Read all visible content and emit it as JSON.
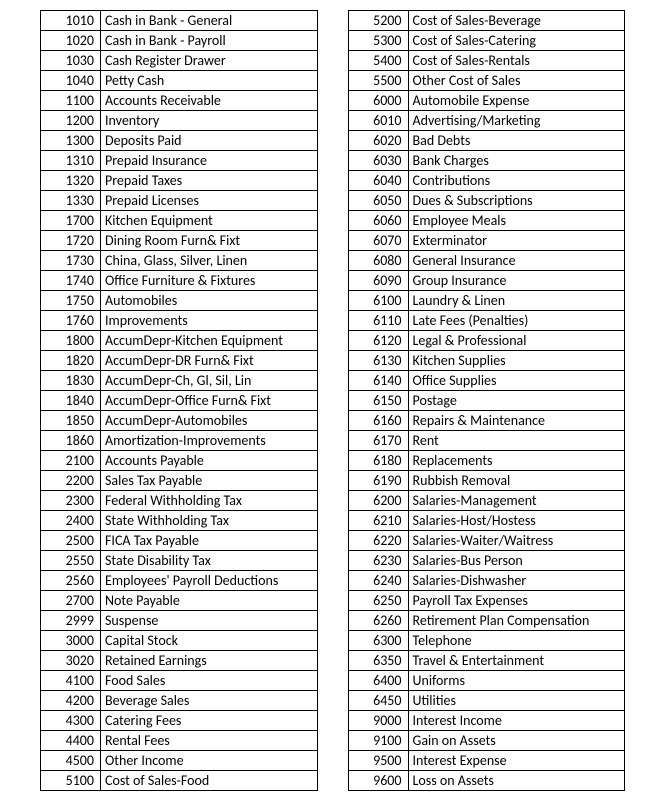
{
  "left_table": {
    "rows": [
      {
        "code": "1010",
        "name": "Cash in Bank - General"
      },
      {
        "code": "1020",
        "name": "Cash in Bank - Payroll"
      },
      {
        "code": "1030",
        "name": "Cash Register Drawer"
      },
      {
        "code": "1040",
        "name": "Petty Cash"
      },
      {
        "code": "1100",
        "name": "Accounts Receivable"
      },
      {
        "code": "1200",
        "name": "Inventory"
      },
      {
        "code": "1300",
        "name": "Deposits Paid"
      },
      {
        "code": "1310",
        "name": "Prepaid Insurance"
      },
      {
        "code": "1320",
        "name": "Prepaid Taxes"
      },
      {
        "code": "1330",
        "name": "Prepaid Licenses"
      },
      {
        "code": "1700",
        "name": "Kitchen Equipment"
      },
      {
        "code": "1720",
        "name": "Dining Room Furn& Fixt"
      },
      {
        "code": "1730",
        "name": "China, Glass, Silver, Linen"
      },
      {
        "code": "1740",
        "name": "Office Furniture & Fixtures"
      },
      {
        "code": "1750",
        "name": "Automobiles"
      },
      {
        "code": "1760",
        "name": "Improvements"
      },
      {
        "code": "1800",
        "name": "AccumDepr-Kitchen Equipment"
      },
      {
        "code": "1820",
        "name": "AccumDepr-DR Furn& Fixt"
      },
      {
        "code": "1830",
        "name": "AccumDepr-Ch, Gl, Sil, Lin"
      },
      {
        "code": "1840",
        "name": "AccumDepr-Office Furn& Fixt"
      },
      {
        "code": "1850",
        "name": "AccumDepr-Automobiles"
      },
      {
        "code": "1860",
        "name": "Amortization-Improvements"
      },
      {
        "code": "2100",
        "name": "Accounts Payable"
      },
      {
        "code": "2200",
        "name": "Sales Tax Payable"
      },
      {
        "code": "2300",
        "name": "Federal Withholding Tax"
      },
      {
        "code": "2400",
        "name": "State Withholding Tax"
      },
      {
        "code": "2500",
        "name": "FICA Tax Payable"
      },
      {
        "code": "2550",
        "name": "State Disability Tax"
      },
      {
        "code": "2560",
        "name": "Employees' Payroll Deductions"
      },
      {
        "code": "2700",
        "name": "Note Payable"
      },
      {
        "code": "2999",
        "name": "Suspense"
      },
      {
        "code": "3000",
        "name": "Capital Stock"
      },
      {
        "code": "3020",
        "name": "Retained Earnings"
      },
      {
        "code": "4100",
        "name": "Food Sales"
      },
      {
        "code": "4200",
        "name": "Beverage Sales"
      },
      {
        "code": "4300",
        "name": "Catering Fees"
      },
      {
        "code": "4400",
        "name": "Rental Fees"
      },
      {
        "code": "4500",
        "name": "Other Income"
      },
      {
        "code": "5100",
        "name": "Cost of Sales-Food"
      }
    ]
  },
  "right_table": {
    "rows": [
      {
        "code": "5200",
        "name": "Cost of Sales-Beverage"
      },
      {
        "code": "5300",
        "name": "Cost of Sales-Catering"
      },
      {
        "code": "5400",
        "name": "Cost of Sales-Rentals"
      },
      {
        "code": "5500",
        "name": "Other Cost of Sales"
      },
      {
        "code": "6000",
        "name": "Automobile Expense"
      },
      {
        "code": "6010",
        "name": "Advertising/Marketing"
      },
      {
        "code": "6020",
        "name": "Bad Debts"
      },
      {
        "code": "6030",
        "name": "Bank Charges"
      },
      {
        "code": "6040",
        "name": "Contributions"
      },
      {
        "code": "6050",
        "name": "Dues & Subscriptions"
      },
      {
        "code": "6060",
        "name": "Employee Meals"
      },
      {
        "code": "6070",
        "name": "Exterminator"
      },
      {
        "code": "6080",
        "name": "General Insurance"
      },
      {
        "code": "6090",
        "name": "Group Insurance"
      },
      {
        "code": "6100",
        "name": "Laundry & Linen"
      },
      {
        "code": "6110",
        "name": "Late Fees (Penalties)"
      },
      {
        "code": "6120",
        "name": "Legal & Professional"
      },
      {
        "code": "6130",
        "name": "Kitchen Supplies"
      },
      {
        "code": "6140",
        "name": "Office Supplies"
      },
      {
        "code": "6150",
        "name": "Postage"
      },
      {
        "code": "6160",
        "name": "Repairs & Maintenance"
      },
      {
        "code": "6170",
        "name": "Rent"
      },
      {
        "code": "6180",
        "name": "Replacements"
      },
      {
        "code": "6190",
        "name": "Rubbish Removal"
      },
      {
        "code": "6200",
        "name": "Salaries-Management"
      },
      {
        "code": "6210",
        "name": "Salaries-Host/Hostess"
      },
      {
        "code": "6220",
        "name": "Salaries-Waiter/Waitress"
      },
      {
        "code": "6230",
        "name": "Salaries-Bus Person"
      },
      {
        "code": "6240",
        "name": "Salaries-Dishwasher"
      },
      {
        "code": "6250",
        "name": "Payroll Tax Expenses"
      },
      {
        "code": "6260",
        "name": "Retirement Plan Compensation"
      },
      {
        "code": "6300",
        "name": "Telephone"
      },
      {
        "code": "6350",
        "name": "Travel & Entertainment"
      },
      {
        "code": "6400",
        "name": "Uniforms"
      },
      {
        "code": "6450",
        "name": "Utilities"
      },
      {
        "code": "9000",
        "name": "Interest Income"
      },
      {
        "code": "9100",
        "name": "Gain on Assets"
      },
      {
        "code": "9500",
        "name": "Interest Expense"
      },
      {
        "code": "9600",
        "name": "Loss  on Assets"
      }
    ]
  }
}
